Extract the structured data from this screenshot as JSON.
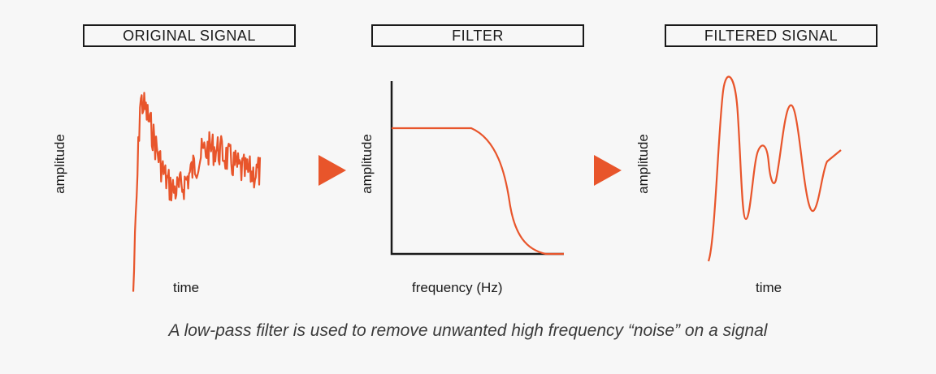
{
  "colors": {
    "accent": "#e8552b",
    "ink": "#1a1a1a",
    "background": "#f7f7f7",
    "caption": "#3a3a3a"
  },
  "panels": {
    "original": {
      "title": "ORIGINAL SIGNAL",
      "ylabel": "amplitude",
      "xlabel": "time"
    },
    "filter": {
      "title": "FILTER",
      "ylabel": "amplitude",
      "xlabel": "frequency (Hz)"
    },
    "filtered": {
      "title": "FILTERED SIGNAL",
      "ylabel": "amplitude",
      "xlabel": "time"
    }
  },
  "icons": {
    "arrow_1": "play-arrow-icon",
    "arrow_2": "play-arrow-icon"
  },
  "caption": "A low-pass filter is used to remove unwanted high frequency “noise” on a signal"
}
